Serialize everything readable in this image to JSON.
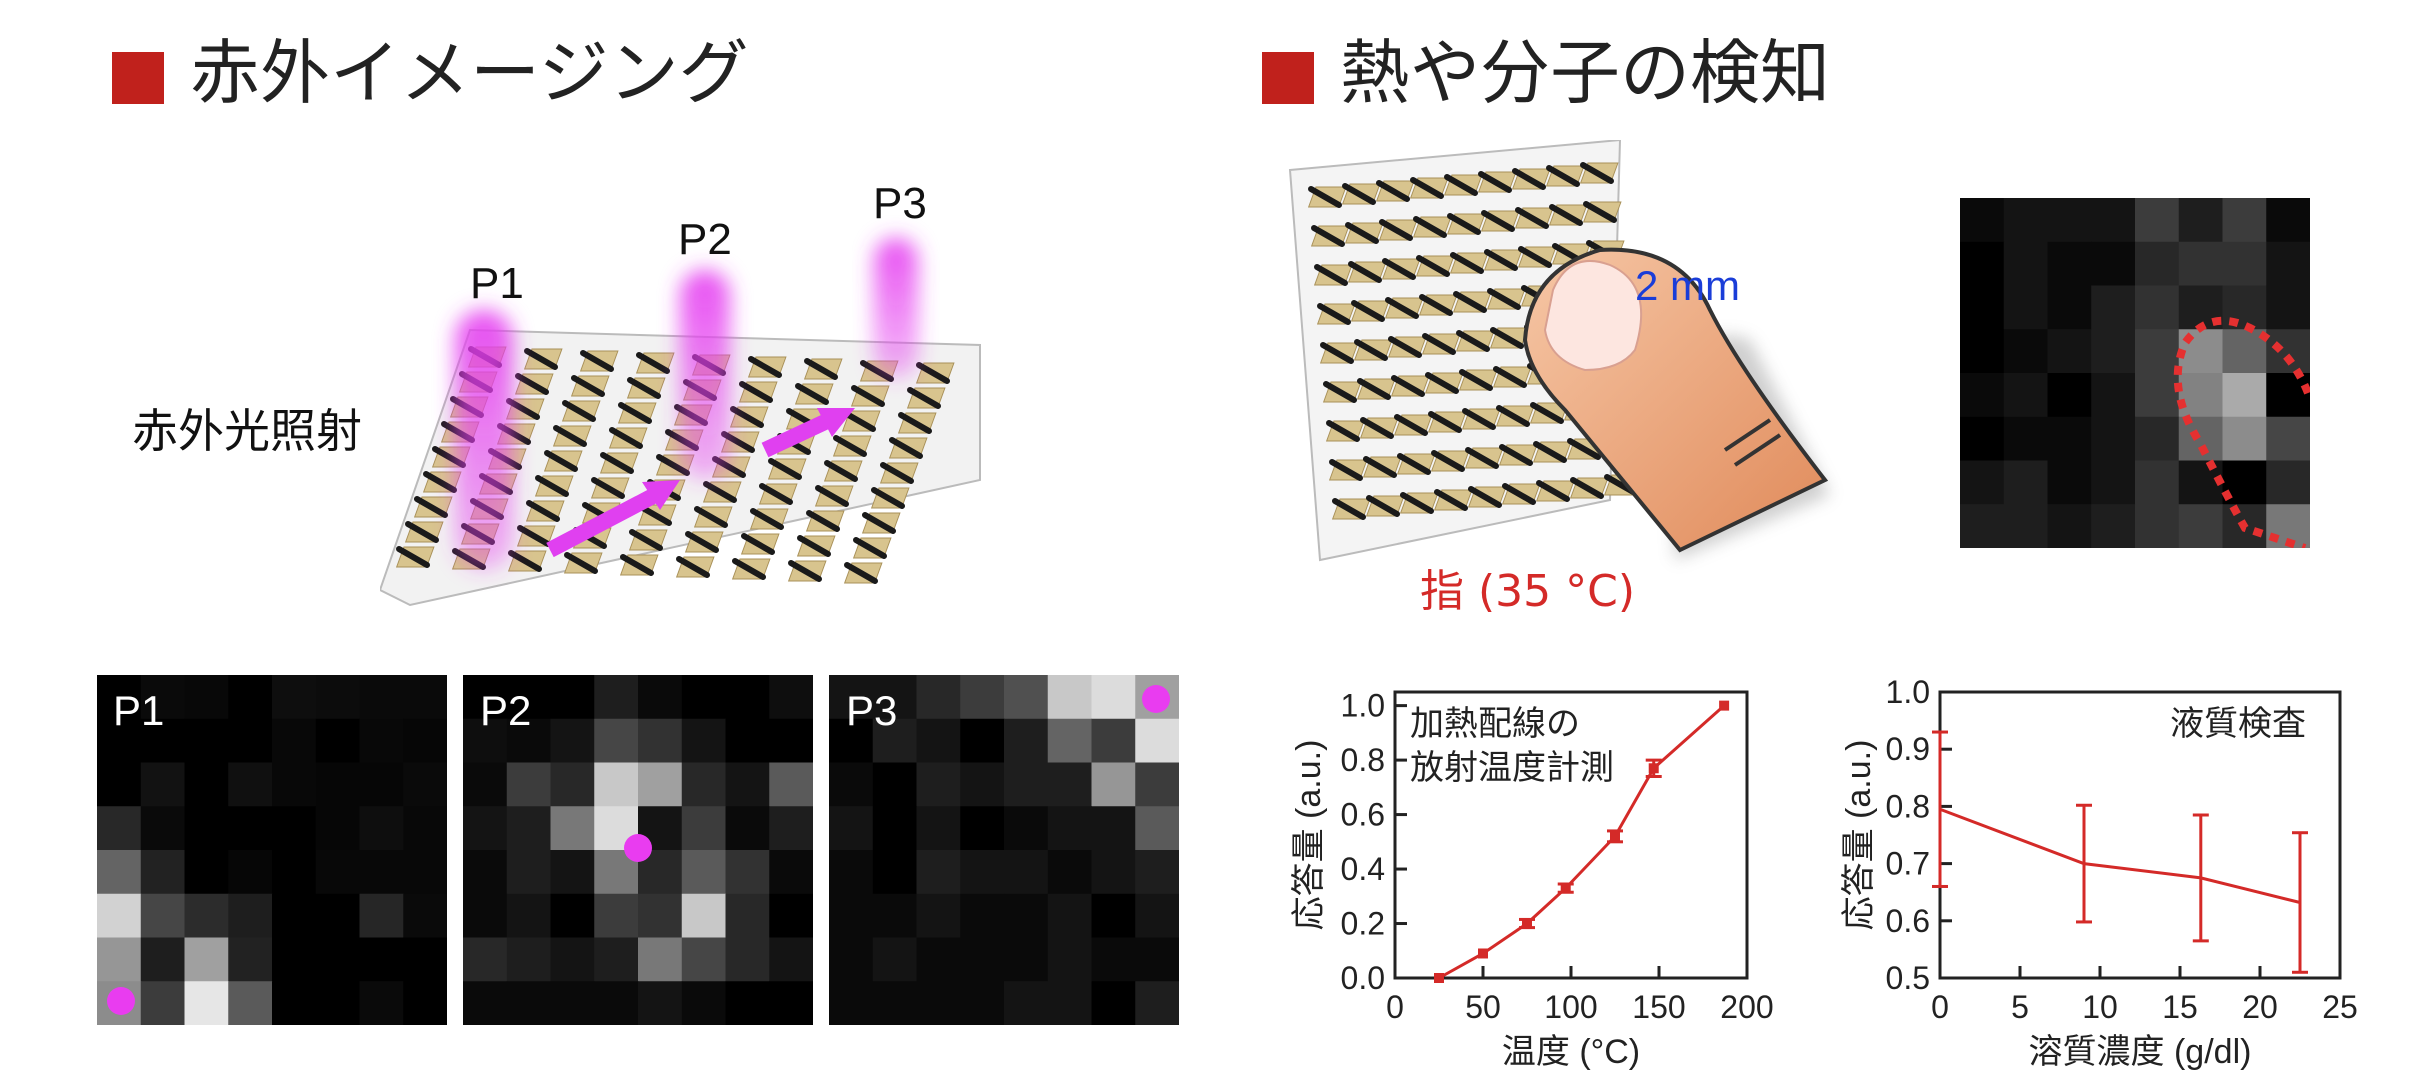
{
  "left": {
    "title": "赤外イメージング",
    "illumination_label": "赤外光照射",
    "points": [
      "P1",
      "P2",
      "P3"
    ],
    "panels": [
      {
        "label": "P1",
        "levels": [
          [
            0,
            10,
            8,
            0,
            14,
            12,
            10,
            10
          ],
          [
            0,
            0,
            0,
            0,
            8,
            0,
            8,
            6
          ],
          [
            0,
            18,
            0,
            16,
            8,
            6,
            6,
            10
          ],
          [
            40,
            10,
            0,
            0,
            0,
            6,
            14,
            8
          ],
          [
            100,
            34,
            0,
            6,
            0,
            8,
            8,
            8
          ],
          [
            210,
            70,
            44,
            30,
            0,
            0,
            38,
            10
          ],
          [
            150,
            30,
            160,
            34,
            0,
            0,
            0,
            0
          ],
          [
            140,
            60,
            230,
            90,
            0,
            0,
            10,
            0
          ]
        ]
      },
      {
        "label": "P2",
        "levels": [
          [
            0,
            0,
            0,
            30,
            10,
            0,
            0,
            14
          ],
          [
            14,
            10,
            20,
            70,
            50,
            20,
            0,
            0
          ],
          [
            10,
            60,
            40,
            200,
            160,
            40,
            20,
            90
          ],
          [
            20,
            30,
            120,
            220,
            20,
            60,
            10,
            30
          ],
          [
            10,
            30,
            20,
            120,
            40,
            90,
            50,
            10
          ],
          [
            10,
            20,
            0,
            60,
            50,
            200,
            40,
            0
          ],
          [
            40,
            30,
            20,
            30,
            120,
            70,
            40,
            20
          ],
          [
            10,
            10,
            10,
            10,
            20,
            10,
            0,
            0
          ]
        ]
      },
      {
        "label": "P3",
        "levels": [
          [
            20,
            20,
            40,
            60,
            80,
            200,
            220,
            160
          ],
          [
            0,
            30,
            20,
            0,
            30,
            100,
            60,
            220
          ],
          [
            10,
            0,
            30,
            20,
            30,
            30,
            150,
            60
          ],
          [
            20,
            0,
            20,
            0,
            10,
            20,
            20,
            90
          ],
          [
            10,
            0,
            30,
            20,
            20,
            10,
            20,
            30
          ],
          [
            10,
            10,
            20,
            10,
            10,
            20,
            0,
            20
          ],
          [
            10,
            20,
            10,
            10,
            10,
            20,
            10,
            10
          ],
          [
            10,
            10,
            10,
            10,
            20,
            20,
            0,
            30
          ]
        ]
      }
    ]
  },
  "right": {
    "title": "熱や分子の検知",
    "scale_label": "2 mm",
    "finger_label": "指 (35 °C)",
    "thermal_levels": [
      [
        10,
        20,
        20,
        20,
        60,
        30,
        60,
        10
      ],
      [
        0,
        20,
        10,
        10,
        40,
        50,
        50,
        20
      ],
      [
        0,
        20,
        10,
        30,
        50,
        30,
        40,
        20
      ],
      [
        0,
        10,
        20,
        30,
        60,
        140,
        100,
        50
      ],
      [
        10,
        20,
        0,
        20,
        60,
        130,
        170,
        0
      ],
      [
        0,
        10,
        10,
        20,
        40,
        100,
        140,
        70
      ],
      [
        20,
        30,
        10,
        20,
        50,
        20,
        0,
        40
      ],
      [
        30,
        30,
        20,
        30,
        50,
        60,
        40,
        120
      ]
    ]
  },
  "chart_data": [
    {
      "type": "line",
      "annotation": [
        "加熱配線の",
        "放射温度計測"
      ],
      "xlabel": "温度 (°C)",
      "ylabel": "応答量 (a.u.)",
      "xlim": [
        0,
        200
      ],
      "ylim": [
        0,
        1.05
      ],
      "xticks": [
        0,
        50,
        100,
        150,
        200
      ],
      "yticks": [
        0.0,
        0.2,
        0.4,
        0.6,
        0.8,
        1.0
      ],
      "ytick_labels": [
        "0.0",
        "0.2",
        "0.4",
        "0.6",
        "0.8",
        "1.0"
      ],
      "x": [
        25,
        50,
        75,
        97,
        125,
        147,
        187
      ],
      "y": [
        0.0,
        0.09,
        0.2,
        0.33,
        0.52,
        0.77,
        1.0
      ],
      "yerr": [
        0.005,
        0.01,
        0.015,
        0.015,
        0.02,
        0.03,
        0.005
      ],
      "color": "#d42a28"
    },
    {
      "type": "line",
      "annotation": [
        "液質検査"
      ],
      "xlabel": "溶質濃度 (g/dl)",
      "ylabel": "応答量 (a.u.)",
      "xlim": [
        0,
        25
      ],
      "ylim": [
        0.5,
        1.0
      ],
      "xticks": [
        0,
        5,
        10,
        15,
        20,
        25
      ],
      "yticks": [
        0.5,
        0.6,
        0.7,
        0.8,
        0.9,
        1.0
      ],
      "ytick_labels": [
        "0.5",
        "0.6",
        "0.7",
        "0.8",
        "0.9",
        "1.0"
      ],
      "x": [
        0,
        9,
        16.3,
        22.5
      ],
      "y": [
        0.795,
        0.7,
        0.675,
        0.632
      ],
      "yerr": [
        0.135,
        0.102,
        0.11,
        0.122
      ],
      "color": "#d42a28"
    }
  ]
}
